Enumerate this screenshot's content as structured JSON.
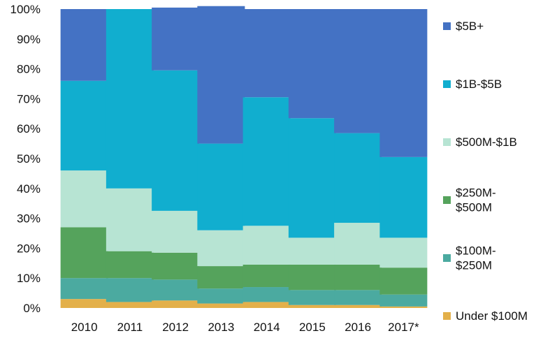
{
  "chart_data": {
    "type": "bar",
    "stacked": true,
    "percent": true,
    "categories": [
      "2010",
      "2011",
      "2012",
      "2013",
      "2014",
      "2015",
      "2016",
      "2017*"
    ],
    "series": [
      {
        "name": "Under $100M",
        "color": "#E3B04A",
        "values": [
          3,
          2,
          2.5,
          1.5,
          2,
          1,
          1,
          0.5
        ]
      },
      {
        "name": "$100M-$250M",
        "color": "#4BAAA0",
        "values": [
          7,
          8,
          7,
          5,
          5,
          5,
          5,
          4
        ]
      },
      {
        "name": "$250M-$500M",
        "color": "#55A35C",
        "values": [
          17,
          9,
          9,
          7.5,
          7.5,
          8.5,
          8.5,
          9
        ]
      },
      {
        "name": "$500M-$1B",
        "color": "#B7E4D3",
        "values": [
          19,
          21,
          14,
          12,
          13,
          9,
          14,
          10
        ]
      },
      {
        "name": "$1B-$5B",
        "color": "#11AECF",
        "values": [
          30,
          60,
          47,
          29,
          43,
          40,
          30,
          27
        ]
      },
      {
        "name": "$5B+",
        "color": "#4472C4",
        "values": [
          24,
          0,
          21,
          46,
          29.5,
          36.5,
          41.5,
          49.5
        ]
      }
    ],
    "legend_labels": [
      [
        "$5B+"
      ],
      [
        "$1B-$5B"
      ],
      [
        "$500M-$1B"
      ],
      [
        "$250M-",
        "$500M"
      ],
      [
        "$100M-",
        "$250M"
      ],
      [
        "Under $100M"
      ]
    ],
    "y_ticks": [
      "0%",
      "10%",
      "20%",
      "30%",
      "40%",
      "50%",
      "60%",
      "70%",
      "80%",
      "90%",
      "100%"
    ],
    "ylim": [
      0,
      100
    ],
    "grid": false,
    "legend_position": "right",
    "title": "",
    "xlabel": "",
    "ylabel": ""
  }
}
